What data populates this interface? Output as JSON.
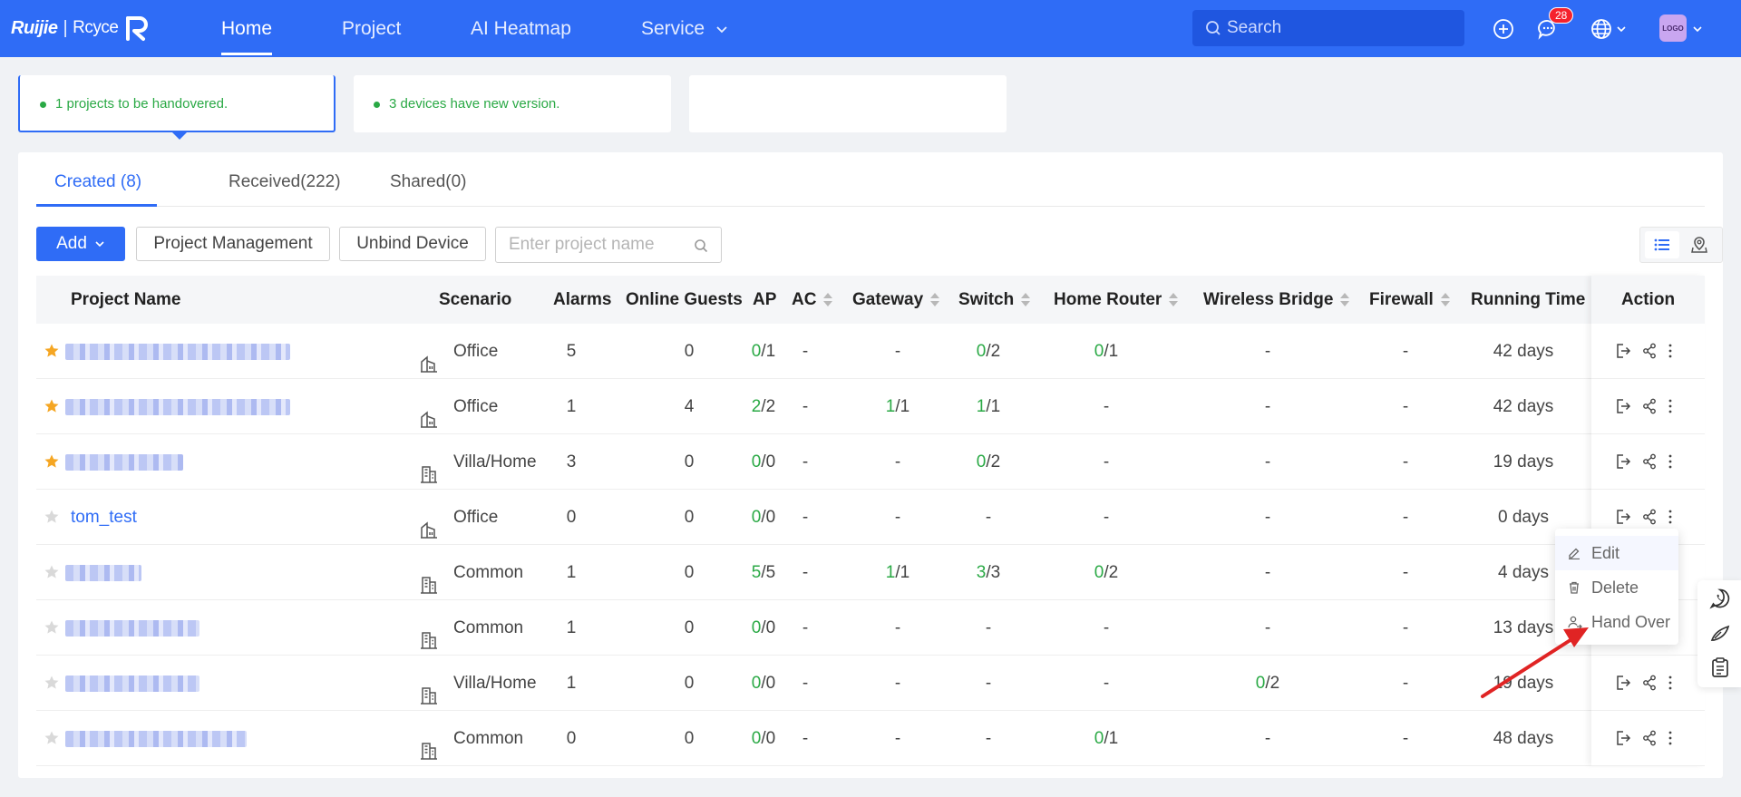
{
  "nav": {
    "brand": "Ruijie",
    "brand_sub": "Rcyce",
    "items": [
      "Home",
      "Project",
      "AI Heatmap",
      "Service"
    ],
    "search_placeholder": "Search",
    "notification_count": "28",
    "avatar_text": "LOGO"
  },
  "cards": [
    {
      "message": "1 projects to be handovered."
    },
    {
      "message": "3 devices have new version."
    },
    {
      "message": ""
    }
  ],
  "tabs": [
    "Created (8)",
    "Received(222)",
    "Shared(0)"
  ],
  "toolbar": {
    "add_label": "Add",
    "project_management_label": "Project Management",
    "unbind_device_label": "Unbind Device",
    "search_placeholder": "Enter project name"
  },
  "columns": [
    "Project Name",
    "Scenario",
    "Alarms",
    "Online Guests",
    "AP",
    "AC",
    "Gateway",
    "Switch",
    "Home Router",
    "Wireless Bridge",
    "Firewall",
    "Running Time",
    "Action"
  ],
  "rows": [
    {
      "name": "",
      "starred": true,
      "scenario": "Office",
      "alarms": "5",
      "guests": "0",
      "ap_on": "0",
      "ap_total": "/1",
      "ac": "-",
      "gw_on": "",
      "gw_total": "-",
      "sw_on": "0",
      "sw_total": "/2",
      "hr_on": "0",
      "hr_total": "/1",
      "wb_on": "",
      "wb_total": "-",
      "firewall": "-",
      "running": "42 days"
    },
    {
      "name": "",
      "starred": true,
      "scenario": "Office",
      "alarms": "1",
      "guests": "4",
      "ap_on": "2",
      "ap_total": "/2",
      "ac": "-",
      "gw_on": "1",
      "gw_total": "/1",
      "sw_on": "1",
      "sw_total": "/1",
      "hr_on": "",
      "hr_total": "-",
      "wb_on": "",
      "wb_total": "-",
      "firewall": "-",
      "running": "42 days"
    },
    {
      "name": "",
      "starred": true,
      "scenario": "Villa/Home",
      "alarms": "3",
      "guests": "0",
      "ap_on": "0",
      "ap_total": "/0",
      "ac": "-",
      "gw_on": "",
      "gw_total": "-",
      "sw_on": "0",
      "sw_total": "/2",
      "hr_on": "",
      "hr_total": "-",
      "wb_on": "",
      "wb_total": "-",
      "firewall": "-",
      "running": "19 days"
    },
    {
      "name": "tom_test",
      "starred": false,
      "scenario": "Office",
      "alarms": "0",
      "guests": "0",
      "ap_on": "0",
      "ap_total": "/0",
      "ac": "-",
      "gw_on": "",
      "gw_total": "-",
      "sw_on": "",
      "sw_total": "-",
      "hr_on": "",
      "hr_total": "-",
      "wb_on": "",
      "wb_total": "-",
      "firewall": "-",
      "running": "0 days"
    },
    {
      "name": "",
      "starred": false,
      "scenario": "Common",
      "alarms": "1",
      "guests": "0",
      "ap_on": "5",
      "ap_total": "/5",
      "ac": "-",
      "gw_on": "1",
      "gw_total": "/1",
      "sw_on": "3",
      "sw_total": "/3",
      "hr_on": "0",
      "hr_total": "/2",
      "wb_on": "",
      "wb_total": "-",
      "firewall": "-",
      "running": "4 days"
    },
    {
      "name": "",
      "starred": false,
      "scenario": "Common",
      "alarms": "1",
      "guests": "0",
      "ap_on": "0",
      "ap_total": "/0",
      "ac": "-",
      "gw_on": "",
      "gw_total": "-",
      "sw_on": "",
      "sw_total": "-",
      "hr_on": "",
      "hr_total": "-",
      "wb_on": "",
      "wb_total": "-",
      "firewall": "-",
      "running": "13 days"
    },
    {
      "name": "",
      "starred": false,
      "scenario": "Villa/Home",
      "alarms": "1",
      "guests": "0",
      "ap_on": "0",
      "ap_total": "/0",
      "ac": "-",
      "gw_on": "",
      "gw_total": "-",
      "sw_on": "",
      "sw_total": "-",
      "hr_on": "",
      "hr_total": "-",
      "wb_on": "0",
      "wb_total": "/2",
      "firewall": "-",
      "running": "19 days"
    },
    {
      "name": "",
      "starred": false,
      "scenario": "Common",
      "alarms": "0",
      "guests": "0",
      "ap_on": "0",
      "ap_total": "/0",
      "ac": "-",
      "gw_on": "",
      "gw_total": "-",
      "sw_on": "",
      "sw_total": "-",
      "hr_on": "0",
      "hr_total": "/1",
      "wb_on": "",
      "wb_total": "-",
      "firewall": "-",
      "running": "48 days"
    }
  ],
  "menu": {
    "edit": "Edit",
    "delete": "Delete",
    "hand_over": "Hand Over"
  },
  "colors": {
    "primary": "#2f6cf6",
    "online_green": "#2aa945",
    "star_orange": "#f5a623",
    "badge_red": "#f5222d",
    "annotation_arrow": "#e02424"
  }
}
